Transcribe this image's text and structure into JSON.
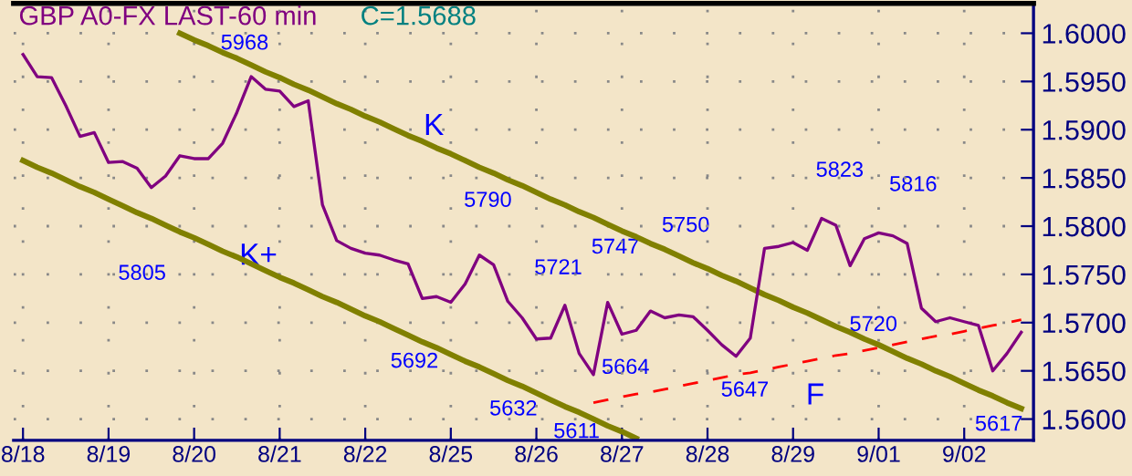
{
  "chart_data": {
    "type": "line",
    "title": "GBP A0-FX LAST-60 min",
    "subtitle": "C=1.5688",
    "categories": [
      "8/18",
      null,
      null,
      null,
      null,
      null,
      "8/19",
      null,
      null,
      null,
      null,
      null,
      "8/20",
      null,
      null,
      null,
      null,
      null,
      "8/21",
      null,
      null,
      null,
      null,
      null,
      "8/22",
      null,
      null,
      null,
      null,
      null,
      "8/25",
      null,
      null,
      null,
      null,
      null,
      "8/26",
      null,
      null,
      null,
      null,
      null,
      "8/27",
      null,
      null,
      null,
      null,
      null,
      "8/28",
      null,
      null,
      null,
      null,
      null,
      "8/29",
      null,
      null,
      null,
      null,
      null,
      "9/01",
      null,
      null,
      null,
      null,
      null,
      "9/02",
      null,
      null,
      null,
      null
    ],
    "ylim": [
      1.5578,
      1.6031
    ],
    "yticks": [
      {
        "value": 1.56,
        "label": "1.5600"
      },
      {
        "value": 1.565,
        "label": "1.5650"
      },
      {
        "value": 1.57,
        "label": "1.5700"
      },
      {
        "value": 1.575,
        "label": "1.5750"
      },
      {
        "value": 1.58,
        "label": "1.5800"
      },
      {
        "value": 1.585,
        "label": "1.5850"
      },
      {
        "value": 1.59,
        "label": "1.5900"
      },
      {
        "value": 1.595,
        "label": "1.5950"
      },
      {
        "value": 1.6,
        "label": "1.6000"
      }
    ],
    "grid": true,
    "marker": "none",
    "series": [
      {
        "color": "#800080",
        "line_style": "solid",
        "values": [
          1.5978,
          1.5955,
          1.5954,
          1.5925,
          1.5893,
          1.5897,
          1.5866,
          1.5867,
          1.586,
          1.584,
          1.5852,
          1.5873,
          1.587,
          1.587,
          1.5886,
          1.5918,
          1.5955,
          1.5942,
          1.594,
          1.5924,
          1.593,
          1.5822,
          1.5785,
          1.5777,
          1.5772,
          1.577,
          1.5765,
          1.5761,
          1.5725,
          1.5727,
          1.5721,
          1.574,
          1.577,
          1.576,
          1.5722,
          1.5705,
          1.5683,
          1.5684,
          1.5718,
          1.5668,
          1.5646,
          1.5721,
          1.5688,
          1.5692,
          1.5712,
          1.5705,
          1.5708,
          1.5706,
          1.5692,
          1.5677,
          1.5665,
          1.5684,
          1.5777,
          1.5779,
          1.5783,
          1.5775,
          1.5808,
          1.5801,
          1.5759,
          1.5787,
          1.5793,
          1.579,
          1.5782,
          1.5715,
          1.5701,
          1.5705,
          1.5701,
          1.5697,
          1.565,
          1.5668,
          1.569
        ]
      },
      {
        "color": "#808000",
        "line_style": "solid",
        "values": [
          null,
          null,
          null,
          null,
          null,
          null,
          null,
          null,
          null,
          null,
          null,
          1.6,
          1.5993,
          1.5987,
          1.598,
          1.5974,
          1.5967,
          1.596,
          1.5954,
          1.5947,
          1.5941,
          1.5934,
          1.5927,
          1.5921,
          1.5914,
          1.5908,
          1.5901,
          1.5894,
          1.5888,
          1.5881,
          1.5875,
          1.5868,
          1.5861,
          1.5855,
          1.5848,
          1.5842,
          1.5835,
          1.5828,
          1.5822,
          1.5815,
          1.5809,
          1.5802,
          1.5795,
          1.5789,
          1.5782,
          1.5776,
          1.5769,
          1.5762,
          1.5756,
          1.5749,
          1.5743,
          1.5736,
          1.5729,
          1.5723,
          1.5716,
          1.571,
          1.5703,
          1.5696,
          1.569,
          1.5683,
          1.5677,
          1.567,
          1.5663,
          1.5657,
          1.565,
          1.5644,
          1.5637,
          1.563,
          1.5624,
          1.5617,
          1.5611
        ]
      },
      {
        "color": "#808000",
        "line_style": "solid",
        "values": [
          1.5868,
          1.5861,
          1.5855,
          1.5848,
          1.5841,
          1.5835,
          1.5828,
          1.5821,
          1.5814,
          1.5808,
          1.5801,
          1.5794,
          1.5788,
          1.5781,
          1.5774,
          1.5768,
          1.5761,
          1.5754,
          1.5747,
          1.5741,
          1.5734,
          1.5727,
          1.5721,
          1.5714,
          1.5707,
          1.5701,
          1.5694,
          1.5687,
          1.568,
          1.5674,
          1.5667,
          1.566,
          1.5654,
          1.5647,
          1.564,
          1.5634,
          1.5627,
          1.562,
          1.5613,
          1.5607,
          1.56,
          1.5593,
          1.5587,
          1.558,
          null,
          null,
          null,
          null,
          null,
          null,
          null,
          null,
          null,
          null,
          null,
          null,
          null,
          null,
          null,
          null,
          null,
          null,
          null,
          null,
          null,
          null,
          null,
          null,
          null,
          null,
          null
        ]
      },
      {
        "color": "#ff0000",
        "line_style": "dashed",
        "values": [
          null,
          null,
          null,
          null,
          null,
          null,
          null,
          null,
          null,
          null,
          null,
          null,
          null,
          null,
          null,
          null,
          null,
          null,
          null,
          null,
          null,
          null,
          null,
          null,
          null,
          null,
          null,
          null,
          null,
          null,
          null,
          null,
          null,
          null,
          null,
          null,
          null,
          null,
          null,
          null,
          1.5617,
          1.562,
          1.5623,
          1.5626,
          1.5628,
          1.5631,
          1.5634,
          1.5637,
          1.564,
          1.5643,
          1.5646,
          1.5648,
          1.5651,
          1.5654,
          1.5657,
          1.566,
          1.5663,
          1.5666,
          1.5668,
          1.5671,
          1.5674,
          1.5677,
          1.568,
          1.5683,
          1.5686,
          1.5688,
          1.5691,
          1.5694,
          1.5697,
          1.57,
          1.5703
        ]
      }
    ],
    "annotations": [
      "5968",
      "5805",
      "K+",
      "K",
      "5790",
      "5692",
      "5721",
      "5632",
      "5611",
      "5664",
      "5647",
      "F",
      "5720",
      "5747",
      "5750",
      "5823",
      "5816",
      "5617"
    ]
  }
}
